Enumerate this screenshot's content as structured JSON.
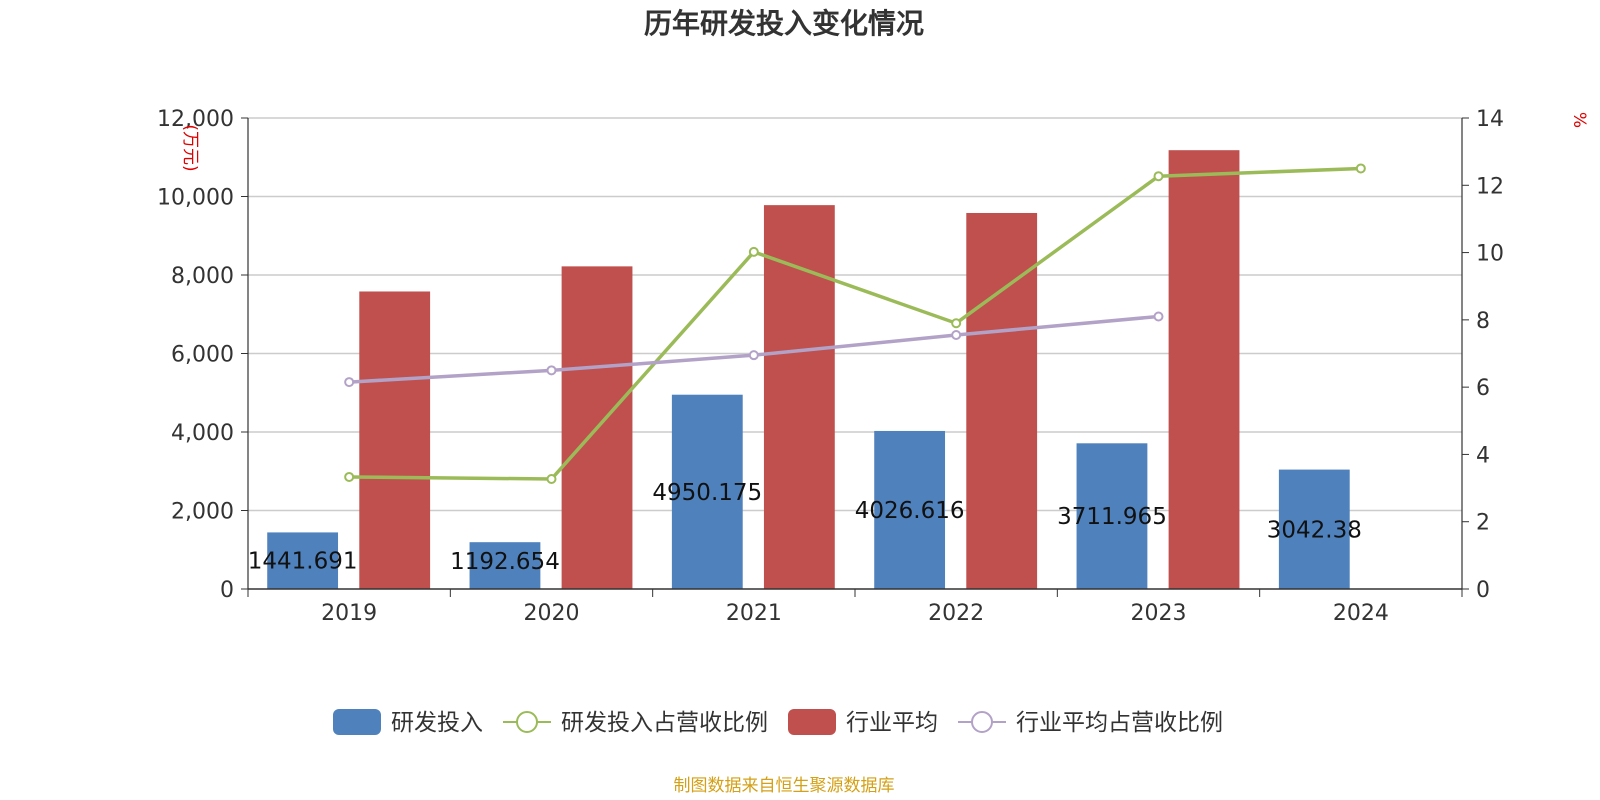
{
  "chart_data": {
    "type": "bar",
    "title": "历年研发投入变化情况",
    "categories": [
      "2019",
      "2020",
      "2021",
      "2022",
      "2023",
      "2024"
    ],
    "y_left": {
      "unit": "(万元)",
      "ylim": [
        0,
        12000
      ],
      "ticks": [
        0,
        2000,
        4000,
        6000,
        8000,
        10000,
        12000
      ],
      "tick_labels": [
        "0",
        "2,000",
        "4,000",
        "6,000",
        "8,000",
        "10,000",
        "12,000"
      ]
    },
    "y_right": {
      "unit": "%",
      "ylim": [
        0,
        14
      ],
      "ticks": [
        0,
        2,
        4,
        6,
        8,
        10,
        12,
        14
      ],
      "tick_labels": [
        "0",
        "2",
        "4",
        "6",
        "8",
        "10",
        "12",
        "14"
      ]
    },
    "series": [
      {
        "name": "研发投入",
        "kind": "bar",
        "axis": "left",
        "color": "#4f81bd",
        "values": [
          1441.691,
          1192.654,
          4950.175,
          4026.616,
          3711.965,
          3042.38
        ],
        "labels": [
          "1441.691",
          "1192.654",
          "4950.175",
          "4026.616",
          "3711.965",
          "3042.38"
        ]
      },
      {
        "name": "研发投入占营收比例",
        "kind": "line",
        "axis": "right",
        "color": "#9bbb59",
        "values": [
          3.33,
          3.27,
          10.02,
          7.9,
          12.27,
          12.5
        ]
      },
      {
        "name": "行业平均",
        "kind": "bar",
        "axis": "left",
        "color": "#c0504d",
        "values": [
          7580,
          8220,
          9780,
          9580,
          11180,
          null
        ]
      },
      {
        "name": "行业平均占营收比例",
        "kind": "line",
        "axis": "right",
        "color": "#b3a2c7",
        "values": [
          6.15,
          6.5,
          6.95,
          7.55,
          8.1,
          null
        ]
      }
    ],
    "grid": true,
    "legend_position": "bottom"
  },
  "source_text": "制图数据来自恒生聚源数据库"
}
